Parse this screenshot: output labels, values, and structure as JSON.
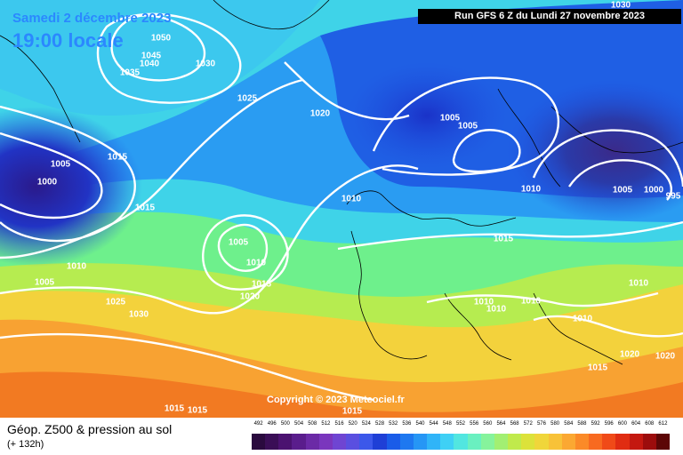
{
  "header": {
    "date_label": "Samedi 2 décembre 2023",
    "time_label": "19:00 locale",
    "run_label": "Run GFS 6 Z du Lundi 27 novembre 2023"
  },
  "copyright": "Copyright © 2023 Meteociel.fr",
  "footer": {
    "title": "Géop. Z500 & pression au sol",
    "subtitle": "(+ 132h)"
  },
  "legend": {
    "values": [
      "492",
      "496",
      "500",
      "504",
      "508",
      "512",
      "516",
      "520",
      "524",
      "528",
      "532",
      "536",
      "540",
      "544",
      "548",
      "552",
      "556",
      "560",
      "564",
      "568",
      "572",
      "576",
      "580",
      "584",
      "588",
      "592",
      "596",
      "600",
      "604",
      "608",
      "612"
    ],
    "colors": [
      "#2a0a3e",
      "#3a0e56",
      "#4b1270",
      "#5a1d8c",
      "#6b2aa6",
      "#7a36bd",
      "#6f45d2",
      "#5a4fe0",
      "#3c58ea",
      "#1f3fd6",
      "#1a5ce8",
      "#1e78f0",
      "#2696f5",
      "#30b4f8",
      "#3fd0f5",
      "#52e6e0",
      "#6af0c0",
      "#86f39c",
      "#a2ef72",
      "#c0ea4c",
      "#dce23a",
      "#f0d63a",
      "#f8c238",
      "#fba832",
      "#fb8a28",
      "#f86a20",
      "#f04a18",
      "#e02c12",
      "#c41810",
      "#9c0c0c",
      "#5c0606"
    ]
  },
  "pressure_labels": [
    "1050",
    "1045",
    "1040",
    "1035",
    "1030",
    "1025",
    "1020",
    "1015",
    "1010",
    "1005",
    "1000",
    "995"
  ],
  "colors": {
    "title_blue": "#2b88ff",
    "isobar": "#ffffff"
  }
}
